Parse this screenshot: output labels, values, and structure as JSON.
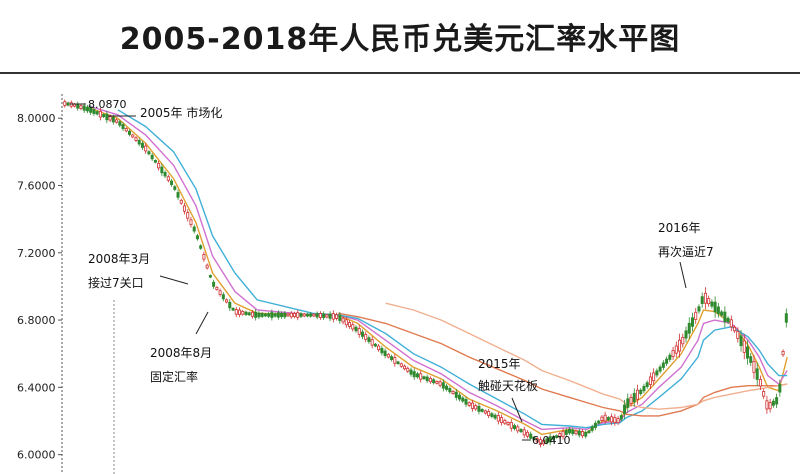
{
  "chart_data": {
    "type": "line",
    "title": "2005-2018年人民币兑美元汇率水平图",
    "ylim": [
      5.98,
      8.12
    ],
    "y_ticks": [
      "8.0000",
      "7.6000",
      "7.2000",
      "6.8000",
      "6.4000",
      "6.0000"
    ],
    "y_tick_values": [
      8.0,
      7.6,
      7.2,
      6.8,
      6.4,
      6.0
    ],
    "x": [
      2005.55,
      2005.7,
      2006.0,
      2006.5,
      2007.0,
      2007.5,
      2007.9,
      2008.2,
      2008.6,
      2009.0,
      2010.0,
      2010.45,
      2010.8,
      2011.3,
      2011.8,
      2012.3,
      2012.8,
      2013.3,
      2013.8,
      2014.1,
      2014.6,
      2014.9,
      2015.2,
      2015.5,
      2015.62,
      2015.9,
      2016.2,
      2016.6,
      2016.9,
      2017.0,
      2017.2,
      2017.5,
      2017.8,
      2018.0,
      2018.15,
      2018.35,
      2018.5
    ],
    "series": [
      {
        "values": [
          8.087,
          8.08,
          8.05,
          7.98,
          7.82,
          7.6,
          7.32,
          7.02,
          6.85,
          6.83,
          6.83,
          6.82,
          6.74,
          6.6,
          6.48,
          6.42,
          6.3,
          6.22,
          6.13,
          6.07,
          6.14,
          6.12,
          6.22,
          6.2,
          6.3,
          6.38,
          6.5,
          6.66,
          6.85,
          6.94,
          6.88,
          6.78,
          6.6,
          6.45,
          6.28,
          6.33,
          6.87
        ],
        "color": "#3a8a2a"
      },
      {
        "values": [
          null,
          null,
          8.06,
          8.0,
          7.85,
          7.64,
          7.38,
          7.08,
          6.9,
          6.84,
          6.83,
          6.83,
          6.78,
          6.64,
          6.52,
          6.45,
          6.33,
          6.26,
          6.18,
          6.12,
          6.15,
          6.13,
          6.2,
          6.2,
          6.28,
          6.34,
          6.45,
          6.6,
          6.78,
          6.86,
          6.85,
          6.78,
          6.65,
          6.52,
          6.4,
          6.38,
          6.58
        ],
        "color": "#e0a030"
      },
      {
        "values": [
          null,
          null,
          8.07,
          8.02,
          7.9,
          7.72,
          7.48,
          7.18,
          6.97,
          6.86,
          6.83,
          6.83,
          6.8,
          6.68,
          6.56,
          6.48,
          6.37,
          6.29,
          6.2,
          6.15,
          6.16,
          6.15,
          6.19,
          6.2,
          6.25,
          6.3,
          6.4,
          6.52,
          6.68,
          6.78,
          6.8,
          6.78,
          6.68,
          6.58,
          6.47,
          6.42,
          6.5
        ],
        "color": "#d070d0"
      },
      {
        "values": [
          null,
          null,
          null,
          8.05,
          7.95,
          7.8,
          7.58,
          7.3,
          7.08,
          6.92,
          6.84,
          6.83,
          6.81,
          6.72,
          6.6,
          6.52,
          6.42,
          6.33,
          6.24,
          6.18,
          6.17,
          6.16,
          6.18,
          6.19,
          6.22,
          6.26,
          6.34,
          6.45,
          6.58,
          6.68,
          6.74,
          6.76,
          6.7,
          6.62,
          6.54,
          6.47,
          6.47
        ],
        "color": "#40b0d8"
      },
      {
        "values": [
          null,
          null,
          null,
          null,
          null,
          null,
          null,
          null,
          null,
          null,
          null,
          6.84,
          6.82,
          6.78,
          6.72,
          6.66,
          6.58,
          6.51,
          6.44,
          6.39,
          6.34,
          6.31,
          6.28,
          6.26,
          6.24,
          6.23,
          6.23,
          6.26,
          6.3,
          6.34,
          6.37,
          6.4,
          6.41,
          6.41,
          6.41,
          6.41,
          6.42
        ],
        "color": "#e07a50"
      },
      {
        "values": [
          null,
          null,
          null,
          null,
          null,
          null,
          null,
          null,
          null,
          null,
          null,
          null,
          null,
          6.9,
          6.86,
          6.8,
          6.72,
          6.64,
          6.56,
          6.5,
          6.44,
          6.4,
          6.36,
          6.33,
          6.3,
          6.28,
          6.27,
          6.28,
          6.3,
          6.32,
          6.34,
          6.36,
          6.38,
          6.39,
          6.4,
          6.41,
          6.42
        ],
        "color": "#f0b090"
      }
    ],
    "annotations": [
      {
        "text": "8.0870",
        "x": 2005.55,
        "y": 8.087
      },
      {
        "text": "2005年 市场化",
        "x": 2005.55,
        "y": 8.087
      },
      {
        "text": "2008年3月",
        "x": 2008.2,
        "y": 7.02
      },
      {
        "text": "接过7关口",
        "x": 2008.2,
        "y": 7.02
      },
      {
        "text": "2008年8月",
        "x": 2008.6,
        "y": 6.85
      },
      {
        "text": "固定汇率",
        "x": 2008.6,
        "y": 6.85
      },
      {
        "text": "2015年",
        "x": 2014.1,
        "y": 6.07
      },
      {
        "text": "触碰天花板",
        "x": 2014.1,
        "y": 6.07
      },
      {
        "text": "6.0410",
        "x": 2014.1,
        "y": 6.041
      },
      {
        "text": "2016年",
        "x": 2016.9,
        "y": 6.94
      },
      {
        "text": "再次逼近7",
        "x": 2016.9,
        "y": 6.94
      }
    ]
  }
}
